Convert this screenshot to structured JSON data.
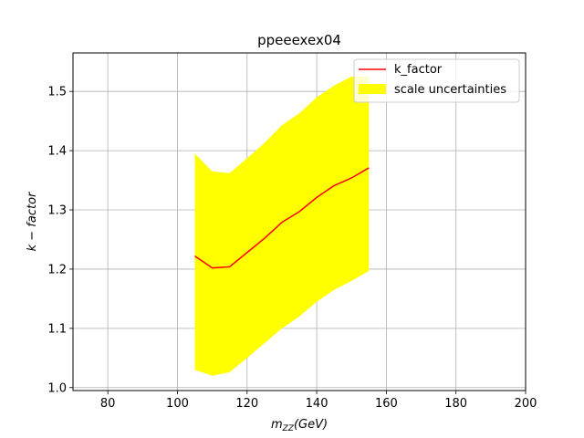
{
  "chart_data": {
    "type": "line",
    "title": "ppeeexex04",
    "xlabel_main": "m",
    "xlabel_sub": "ZZ",
    "xlabel_tail": "(GeV)",
    "ylabel": "k − factor",
    "xlim": [
      70,
      200
    ],
    "ylim": [
      0.995,
      1.565
    ],
    "xticks": [
      80,
      100,
      120,
      140,
      160,
      180,
      200
    ],
    "yticks": [
      1.0,
      1.1,
      1.2,
      1.3,
      1.4,
      1.5
    ],
    "xtick_labels": [
      "80",
      "100",
      "120",
      "140",
      "160",
      "180",
      "200"
    ],
    "ytick_labels": [
      "1.0",
      "1.1",
      "1.2",
      "1.3",
      "1.4",
      "1.5"
    ],
    "grid": true,
    "legend_position": "top-right",
    "x": [
      105,
      110,
      115,
      120,
      125,
      130,
      135,
      140,
      145,
      150,
      155
    ],
    "series": [
      {
        "name": "k_factor",
        "kind": "line",
        "color": "#ff0000",
        "values": [
          1.222,
          1.202,
          1.204,
          1.228,
          1.252,
          1.279,
          1.297,
          1.321,
          1.341,
          1.354,
          1.371
        ]
      },
      {
        "name": "scale uncertainties",
        "kind": "band",
        "color": "#ffff00",
        "lower": [
          1.03,
          1.02,
          1.026,
          1.05,
          1.075,
          1.1,
          1.12,
          1.145,
          1.165,
          1.18,
          1.197
        ],
        "upper": [
          1.395,
          1.365,
          1.362,
          1.387,
          1.413,
          1.443,
          1.463,
          1.49,
          1.51,
          1.525,
          1.525
        ]
      }
    ]
  }
}
